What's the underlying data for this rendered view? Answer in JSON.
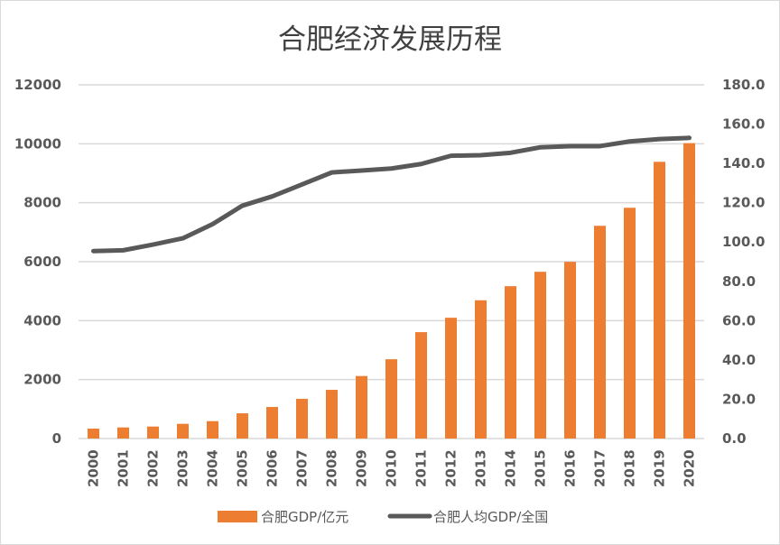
{
  "chart_data": {
    "type": "bar+line",
    "title": "合肥经济发展历程",
    "categories": [
      "2000",
      "2001",
      "2002",
      "2003",
      "2004",
      "2005",
      "2006",
      "2007",
      "2008",
      "2009",
      "2010",
      "2011",
      "2012",
      "2013",
      "2014",
      "2015",
      "2016",
      "2017",
      "2018",
      "2019",
      "2020"
    ],
    "series": [
      {
        "name": "合肥GDP/亿元",
        "type": "bar",
        "axis": "left",
        "color": "#ED7D31",
        "values": [
          336,
          376,
          407,
          499,
          590,
          856,
          1070,
          1346,
          1652,
          2120,
          2690,
          3609,
          4098,
          4690,
          5168,
          5657,
          5994,
          7217,
          7829,
          9388,
          10021
        ]
      },
      {
        "name": "合肥人均GDP/全国",
        "type": "line",
        "axis": "right",
        "color": "#595959",
        "values": [
          95.4,
          95.8,
          98.7,
          101.9,
          109.1,
          118.5,
          123.2,
          129.3,
          135.4,
          136.4,
          137.4,
          139.7,
          143.9,
          144.2,
          145.4,
          148.2,
          148.8,
          148.8,
          151.2,
          152.4,
          153.0
        ]
      }
    ],
    "left_axis": {
      "ylim": [
        0,
        12000
      ],
      "ticks": [
        "0",
        "2000",
        "4000",
        "6000",
        "8000",
        "10000",
        "12000"
      ]
    },
    "right_axis": {
      "ylim": [
        0,
        180
      ],
      "ticks": [
        "0.0",
        "20.0",
        "40.0",
        "60.0",
        "80.0",
        "100.0",
        "120.0",
        "140.0",
        "160.0",
        "180.0"
      ]
    },
    "grid": true,
    "legend": "bottom"
  }
}
